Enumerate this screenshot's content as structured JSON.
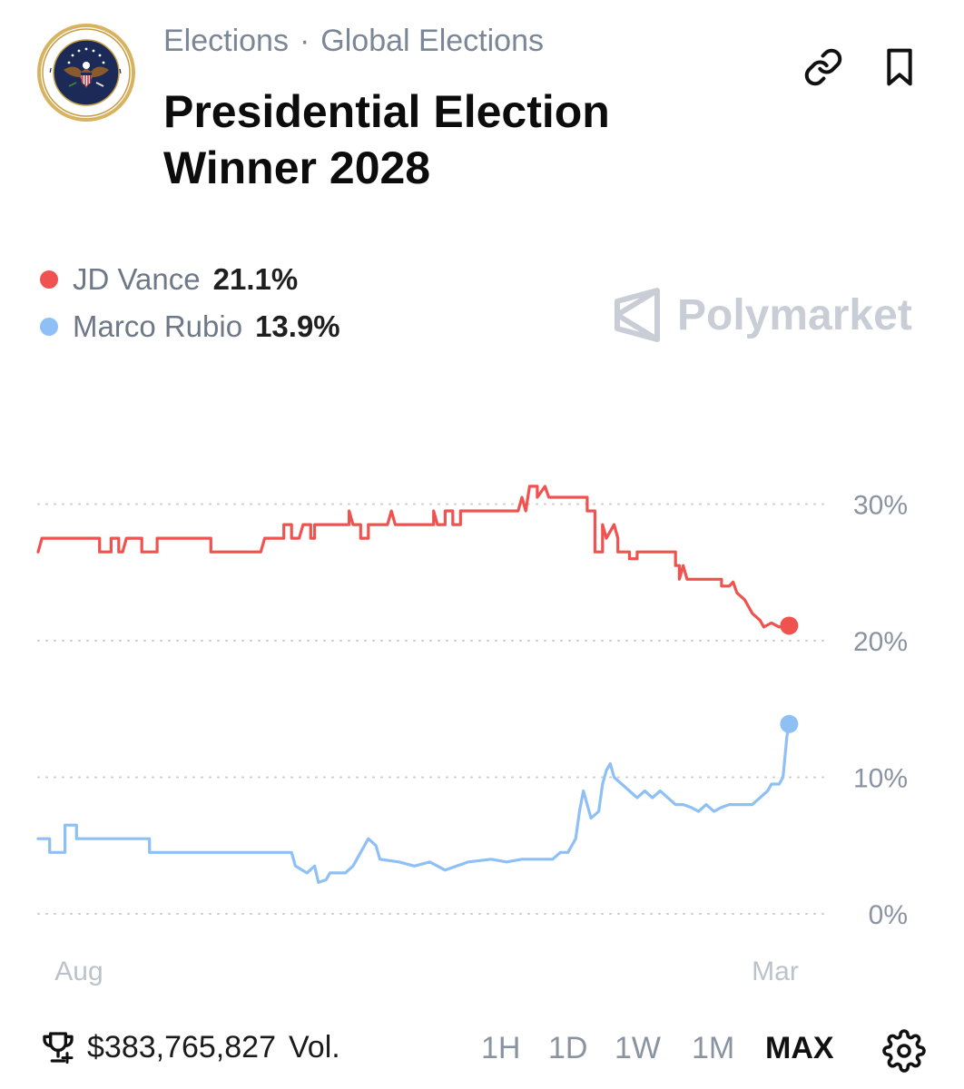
{
  "header": {
    "breadcrumb": [
      "Elections",
      "Global Elections"
    ],
    "separator": "·",
    "title": "Presidential Election Winner 2028",
    "seal_icon": "presidential-seal-icon",
    "link_icon": "link-icon",
    "bookmark_icon": "bookmark-icon"
  },
  "legend": [
    {
      "name": "JD Vance",
      "value": "21.1%",
      "color": "#f0524f"
    },
    {
      "name": "Marco Rubio",
      "value": "13.9%",
      "color": "#8ec0f6"
    }
  ],
  "watermark": {
    "text": "Polymarket"
  },
  "chart_data": {
    "type": "line",
    "title": "",
    "xlabel": "",
    "ylabel": "",
    "x_tick_labels": [
      "Aug",
      "Mar"
    ],
    "y_tick_labels": [
      "30%",
      "20%",
      "10%",
      "0%"
    ],
    "yticks": [
      30,
      20,
      10,
      0
    ],
    "ylim": [
      0,
      33
    ],
    "grid": true,
    "grid_style": "dotted horizontal",
    "x_range": [
      0,
      100
    ],
    "series": [
      {
        "name": "JD Vance",
        "color": "#f0524f",
        "points": [
          [
            0,
            26.5
          ],
          [
            0.5,
            27.5
          ],
          [
            8,
            27.5
          ],
          [
            8,
            26.5
          ],
          [
            9.5,
            26.5
          ],
          [
            9.5,
            27.5
          ],
          [
            10.5,
            27.5
          ],
          [
            10.5,
            26.5
          ],
          [
            11,
            26.5
          ],
          [
            11.5,
            27.5
          ],
          [
            13.5,
            27.5
          ],
          [
            13.5,
            26.5
          ],
          [
            15.5,
            26.5
          ],
          [
            15.5,
            27.5
          ],
          [
            22.5,
            27.5
          ],
          [
            22.5,
            26.5
          ],
          [
            29,
            26.5
          ],
          [
            29.5,
            27.5
          ],
          [
            32,
            27.5
          ],
          [
            32,
            28.5
          ],
          [
            33,
            28.5
          ],
          [
            33,
            27.5
          ],
          [
            34,
            27.5
          ],
          [
            34.5,
            28.5
          ],
          [
            35.5,
            28.5
          ],
          [
            35.5,
            27.5
          ],
          [
            36,
            27.5
          ],
          [
            36,
            28.5
          ],
          [
            40.5,
            28.5
          ],
          [
            40.5,
            29.5
          ],
          [
            41,
            28.5
          ],
          [
            42,
            28.5
          ],
          [
            42,
            27.5
          ],
          [
            43,
            27.5
          ],
          [
            43,
            28.5
          ],
          [
            45.5,
            28.5
          ],
          [
            46,
            29.5
          ],
          [
            46.5,
            28.5
          ],
          [
            51.5,
            28.5
          ],
          [
            51.5,
            29.5
          ],
          [
            52,
            28.5
          ],
          [
            53,
            28.5
          ],
          [
            53,
            29.5
          ],
          [
            54,
            29.5
          ],
          [
            54,
            28.5
          ],
          [
            55,
            28.5
          ],
          [
            55,
            29.5
          ],
          [
            62.5,
            29.5
          ],
          [
            63,
            30.5
          ],
          [
            63.5,
            29.5
          ],
          [
            64,
            31.3
          ],
          [
            65,
            31.3
          ],
          [
            65,
            30.5
          ],
          [
            66,
            31.3
          ],
          [
            66.5,
            30.5
          ],
          [
            71.5,
            30.5
          ],
          [
            71.5,
            29.5
          ],
          [
            72.5,
            29.5
          ],
          [
            72.5,
            26.5
          ],
          [
            73.5,
            26.5
          ],
          [
            73.5,
            28.5
          ],
          [
            74,
            27.5
          ],
          [
            75,
            28.5
          ],
          [
            75.5,
            27.5
          ],
          [
            75.5,
            26.5
          ],
          [
            76,
            26.5
          ],
          [
            77,
            26.5
          ],
          [
            77,
            26
          ],
          [
            78,
            26
          ],
          [
            78,
            26.5
          ],
          [
            83,
            26.5
          ],
          [
            83,
            25.5
          ],
          [
            83.5,
            25.5
          ],
          [
            83.5,
            24.5
          ],
          [
            84,
            25.5
          ],
          [
            84.5,
            24.5
          ],
          [
            89,
            24.5
          ],
          [
            89,
            24
          ],
          [
            90,
            24
          ],
          [
            90.5,
            24.3
          ],
          [
            91,
            23.5
          ],
          [
            92,
            23
          ],
          [
            93,
            22
          ],
          [
            94,
            21.5
          ],
          [
            94.5,
            21
          ],
          [
            95.5,
            21.3
          ],
          [
            96.5,
            21
          ],
          [
            97.5,
            21.1
          ],
          [
            97.8,
            21.1
          ]
        ],
        "end_value": 21.1
      },
      {
        "name": "Marco Rubio",
        "color": "#8ec0f6",
        "points": [
          [
            0,
            5.5
          ],
          [
            1.5,
            5.5
          ],
          [
            1.5,
            4.5
          ],
          [
            3.5,
            4.5
          ],
          [
            3.5,
            6.5
          ],
          [
            5,
            6.5
          ],
          [
            5,
            5.5
          ],
          [
            14.5,
            5.5
          ],
          [
            14.5,
            4.5
          ],
          [
            33,
            4.5
          ],
          [
            33.5,
            3.5
          ],
          [
            35,
            3
          ],
          [
            36,
            3.5
          ],
          [
            36.5,
            2.3
          ],
          [
            37.5,
            2.5
          ],
          [
            38,
            3
          ],
          [
            40,
            3
          ],
          [
            41,
            3.5
          ],
          [
            42,
            4.5
          ],
          [
            43,
            5.5
          ],
          [
            44,
            5
          ],
          [
            44.5,
            4
          ],
          [
            47,
            3.8
          ],
          [
            49,
            3.5
          ],
          [
            51,
            3.8
          ],
          [
            53,
            3.2
          ],
          [
            54.5,
            3.5
          ],
          [
            56,
            3.8
          ],
          [
            59,
            4
          ],
          [
            61,
            3.8
          ],
          [
            63,
            4
          ],
          [
            65,
            4
          ],
          [
            67,
            4
          ],
          [
            68,
            4.5
          ],
          [
            69,
            4.5
          ],
          [
            70,
            5.5
          ],
          [
            70.5,
            7.5
          ],
          [
            71,
            9
          ],
          [
            71.5,
            8
          ],
          [
            72,
            7
          ],
          [
            73,
            7.5
          ],
          [
            73.5,
            9.5
          ],
          [
            74,
            10.5
          ],
          [
            74.5,
            11
          ],
          [
            75,
            10
          ],
          [
            76,
            9.5
          ],
          [
            77,
            9
          ],
          [
            78,
            8.5
          ],
          [
            79,
            9
          ],
          [
            80,
            8.5
          ],
          [
            81,
            9
          ],
          [
            82,
            8.5
          ],
          [
            83,
            8
          ],
          [
            84,
            8
          ],
          [
            85,
            7.8
          ],
          [
            86,
            7.5
          ],
          [
            87,
            8
          ],
          [
            88,
            7.5
          ],
          [
            89,
            7.8
          ],
          [
            90,
            8
          ],
          [
            91,
            8
          ],
          [
            92,
            8
          ],
          [
            93,
            8
          ],
          [
            94,
            8.5
          ],
          [
            95,
            9
          ],
          [
            95.5,
            9.5
          ],
          [
            96.5,
            9.5
          ],
          [
            97,
            10
          ],
          [
            97.5,
            13
          ],
          [
            97.8,
            13.9
          ]
        ],
        "end_value": 13.9
      }
    ]
  },
  "footer": {
    "trophy_icon": "trophy-icon",
    "volume_amount": "$383,765,827",
    "volume_label": "Vol.",
    "timeframes": [
      {
        "label": "1H",
        "active": false
      },
      {
        "label": "1D",
        "active": false
      },
      {
        "label": "1W",
        "active": false
      },
      {
        "label": "1M",
        "active": false
      },
      {
        "label": "MAX",
        "active": true
      }
    ],
    "settings_icon": "gear-icon"
  }
}
